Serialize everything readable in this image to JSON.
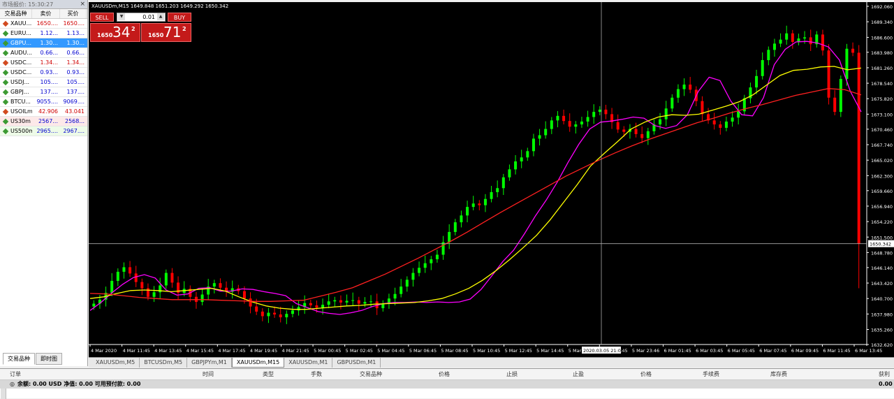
{
  "market_watch": {
    "title": "市场报价: 15:30:27",
    "close": "×",
    "columns": {
      "symbol": "交易品种",
      "bid": "卖价",
      "ask": "买价"
    },
    "rows": [
      {
        "symbol": "XAUU...",
        "bid": "1650....",
        "ask": "1650....",
        "style": "",
        "bid_color": "red",
        "ask_color": "red"
      },
      {
        "symbol": "EURU...",
        "bid": "1.12...",
        "ask": "1.13...",
        "style": "",
        "bid_color": "blue",
        "ask_color": "blue"
      },
      {
        "symbol": "GBPU...",
        "bid": "1.30...",
        "ask": "1.30...",
        "style": "sel",
        "bid_color": "blue",
        "ask_color": "blue"
      },
      {
        "symbol": "AUDU...",
        "bid": "0.66...",
        "ask": "0.66...",
        "style": "",
        "bid_color": "blue",
        "ask_color": "blue"
      },
      {
        "symbol": "USDC...",
        "bid": "1.34...",
        "ask": "1.34...",
        "style": "",
        "bid_color": "red",
        "ask_color": "red"
      },
      {
        "symbol": "USDC...",
        "bid": "0.93...",
        "ask": "0.93...",
        "style": "",
        "bid_color": "blue",
        "ask_color": "blue"
      },
      {
        "symbol": "USDJ...",
        "bid": "105....",
        "ask": "105....",
        "style": "",
        "bid_color": "blue",
        "ask_color": "blue"
      },
      {
        "symbol": "GBPJ...",
        "bid": "137....",
        "ask": "137....",
        "style": "",
        "bid_color": "blue",
        "ask_color": "blue"
      },
      {
        "symbol": "BTCU...",
        "bid": "9055....",
        "ask": "9069....",
        "style": "",
        "bid_color": "blue",
        "ask_color": "blue"
      },
      {
        "symbol": "USOILm",
        "bid": "42.906",
        "ask": "43.041",
        "style": "",
        "bid_color": "red",
        "ask_color": "red"
      },
      {
        "symbol": "US30m",
        "bid": "2567...",
        "ask": "2568...",
        "style": "pink",
        "bid_color": "blue",
        "ask_color": "blue"
      },
      {
        "symbol": "US500m",
        "bid": "2965....",
        "ask": "2967....",
        "style": "lime",
        "bid_color": "blue",
        "ask_color": "blue"
      }
    ],
    "tabs": [
      "交易品种",
      "即时图"
    ]
  },
  "chart": {
    "info": "XAUUSDm,M15  1649.848 1651.203 1649.292 1650.342",
    "sell_label": "SELL",
    "buy_label": "BUY",
    "lot": "0.01",
    "sell_small": "1650",
    "sell_big": "34",
    "sell_sup": "2",
    "buy_small": "1650",
    "buy_big": "71",
    "buy_sup": "2",
    "current_price": "1650.342",
    "crosshair_date": "2020.03.05 21:00",
    "colors": {
      "up": "#00ff00",
      "down": "#ff0000",
      "ma_fast": "#ff00ff",
      "ma_mid": "#ffff00",
      "ma_slow": "#ff2020"
    }
  },
  "chart_data": {
    "type": "candlestick",
    "y_tick_labels": [
      "1692.060",
      "1689.340",
      "1686.600",
      "1683.980",
      "1681.260",
      "1678.540",
      "1675.820",
      "1673.100",
      "1670.460",
      "1667.740",
      "1665.020",
      "1662.300",
      "1659.660",
      "1656.940",
      "1654.220",
      "1651.500",
      "1648.780",
      "1646.140",
      "1643.420",
      "1640.700",
      "1637.980",
      "1635.260",
      "1632.620"
    ],
    "x_tick_labels": [
      "4 Mar 2020",
      "4 Mar 11:45",
      "4 Mar 13:45",
      "4 Mar 15:45",
      "4 Mar 17:45",
      "4 Mar 19:45",
      "4 Mar 21:45",
      "5 Mar 00:45",
      "5 Mar 02:45",
      "5 Mar 04:45",
      "5 Mar 06:45",
      "5 Mar 08:45",
      "5 Mar 10:45",
      "5 Mar 12:45",
      "5 Mar 14:45",
      "5 Mar 16:45",
      "5 Mar 18:45",
      "5 Mar 23:46",
      "6 Mar 01:45",
      "6 Mar 03:45",
      "6 Mar 05:45",
      "6 Mar 07:45",
      "6 Mar 09:45",
      "6 Mar 11:45",
      "6 Mar 13:45"
    ],
    "y_range": [
      1632.62,
      1692.06
    ],
    "close_path": [
      1639.8,
      1640.5,
      1641.7,
      1643.8,
      1645.4,
      1646.2,
      1645.1,
      1643.6,
      1642.5,
      1641.0,
      1641.8,
      1643.0,
      1645.2,
      1643.5,
      1641.7,
      1642.4,
      1641.0,
      1640.1,
      1641.4,
      1642.8,
      1643.4,
      1642.6,
      1641.9,
      1642.5,
      1642.0,
      1640.7,
      1639.3,
      1638.4,
      1637.6,
      1638.2,
      1637.9,
      1637.4,
      1638.0,
      1638.6,
      1639.2,
      1639.9,
      1639.5,
      1639.1,
      1639.6,
      1640.2,
      1640.4,
      1640.0,
      1640.3,
      1640.4,
      1639.8,
      1640.1,
      1640.2,
      1639.0,
      1639.8,
      1640.7,
      1641.5,
      1642.8,
      1644.0,
      1645.2,
      1646.1,
      1646.9,
      1647.6,
      1648.4,
      1650.6,
      1652.4,
      1654.1,
      1655.3,
      1656.8,
      1657.4,
      1657.1,
      1658.2,
      1659.4,
      1660.1,
      1662.0,
      1663.4,
      1664.8,
      1665.5,
      1666.6,
      1668.8,
      1669.4,
      1670.5,
      1672.0,
      1672.8,
      1671.9,
      1670.9,
      1671.3,
      1671.8,
      1672.6,
      1673.5,
      1673.9,
      1673.1,
      1671.7,
      1670.4,
      1670.0,
      1670.5,
      1669.6,
      1668.9,
      1670.1,
      1671.3,
      1672.2,
      1674.1,
      1676.0,
      1677.5,
      1678.3,
      1677.4,
      1675.4,
      1673.1,
      1672.0,
      1671.3,
      1670.7,
      1671.8,
      1672.5,
      1673.6,
      1675.9,
      1677.8,
      1679.8,
      1682.6,
      1684.4,
      1685.5,
      1686.2,
      1687.3,
      1685.8,
      1686.4,
      1686.6,
      1685.4,
      1687.1,
      1684.3,
      1676.0,
      1673.5,
      1679.3,
      1684.6,
      1683.9,
      1650.3
    ],
    "series": [
      {
        "name": "MA fast",
        "values": [
          1638.6,
          1640.0,
          1641.7,
          1643.2,
          1644.4,
          1644.9,
          1644.3,
          1642.2,
          1641.3,
          1641.5,
          1642.5,
          1642.6,
          1642.0,
          1642.0,
          1642.4,
          1642.3,
          1641.9,
          1641.6,
          1641.2,
          1639.8,
          1639.1,
          1638.4,
          1638.1,
          1637.9,
          1638.2,
          1638.6,
          1639.3,
          1639.8,
          1640.0,
          1640.0,
          1640.1,
          1640.0,
          1640.1,
          1640.0,
          1640.1,
          1640.6,
          1642.3,
          1644.7,
          1647.2,
          1649.2,
          1652.1,
          1655.2,
          1658.0,
          1661.1,
          1664.6,
          1667.8,
          1670.5,
          1671.7,
          1671.9,
          1672.2,
          1672.6,
          1672.4,
          1671.1,
          1670.6,
          1671.1,
          1673.0,
          1677.1,
          1679.6,
          1679.0,
          1675.4,
          1673.0,
          1672.8,
          1676.0,
          1681.8,
          1684.5,
          1685.8,
          1685.9,
          1685.6,
          1684.9,
          1682.6,
          1677.1,
          1673.5
        ]
      },
      {
        "name": "MA mid",
        "values": [
          1640.7,
          1641.0,
          1641.6,
          1642.1,
          1642.2,
          1642.1,
          1641.9,
          1642.1,
          1642.3,
          1642.5,
          1642.0,
          1641.0,
          1640.1,
          1639.4,
          1639.0,
          1638.8,
          1638.8,
          1639.0,
          1639.2,
          1639.4,
          1639.5,
          1639.7,
          1639.8,
          1639.9,
          1640.0,
          1640.3,
          1640.7,
          1641.5,
          1642.5,
          1643.9,
          1645.6,
          1647.5,
          1649.6,
          1651.8,
          1654.5,
          1657.6,
          1660.7,
          1664.0,
          1666.2,
          1668.3,
          1670.5,
          1671.7,
          1672.6,
          1673.0,
          1672.9,
          1673.1,
          1673.8,
          1674.5,
          1675.3,
          1676.5,
          1678.2,
          1679.9,
          1680.8,
          1681.0,
          1681.4,
          1681.5,
          1680.9,
          1681.2
        ]
      },
      {
        "name": "MA slow",
        "values": [
          1641.6,
          1641.5,
          1641.2,
          1640.9,
          1640.7,
          1640.5,
          1640.5,
          1640.5,
          1640.4,
          1640.3,
          1640.2,
          1640.2,
          1640.3,
          1640.4,
          1641.1,
          1641.8,
          1642.6,
          1643.8,
          1645.0,
          1646.4,
          1647.8,
          1649.3,
          1650.8,
          1652.4,
          1654.1,
          1655.8,
          1657.4,
          1659.0,
          1660.6,
          1662.2,
          1663.6,
          1665.0,
          1666.3,
          1667.5,
          1668.6,
          1669.6,
          1670.6,
          1671.6,
          1672.4,
          1673.3,
          1674.1,
          1674.8,
          1675.6,
          1676.4,
          1677.0,
          1677.6,
          1677.4,
          1676.5
        ]
      }
    ]
  },
  "chart_tabs": [
    "XAUUSDm,M5",
    "BTCUSDm,M5",
    "GBPJPYm,M1",
    "XAUUSDm,M15",
    "XAUUSDm,M1",
    "GBPUSDm,M1"
  ],
  "terminal": {
    "columns": [
      "订单",
      "时间",
      "类型",
      "手数",
      "交易品种",
      "价格",
      "止损",
      "止盈",
      "价格",
      "手续费",
      "库存费",
      "获利"
    ],
    "balance_text": "余额: 0.00 USD  净值: 0.00  可用预付款: 0.00",
    "profit": "0.00"
  }
}
